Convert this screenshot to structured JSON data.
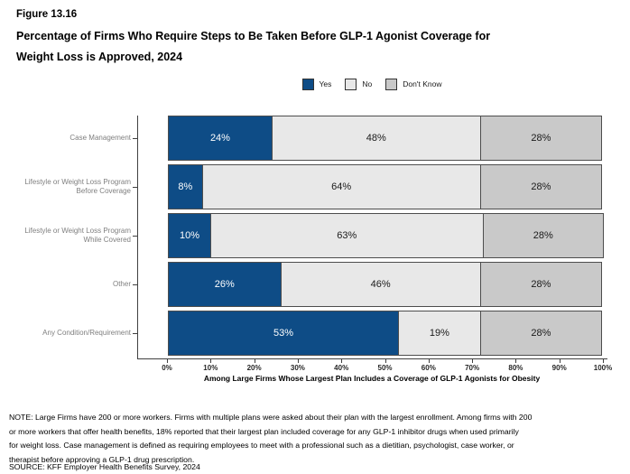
{
  "header": {
    "figure_number": "Figure 13.16",
    "title": "Percentage of Firms Who Require Steps to Be Taken Before GLP-1 Agonist Coverage for\nWeight Loss is Approved, 2024"
  },
  "legend": {
    "items": [
      {
        "label": "Yes",
        "color": "#0E4C86"
      },
      {
        "label": "No",
        "color": "#E8E8E8"
      },
      {
        "label": "Don't Know",
        "color": "#C9C9C9"
      }
    ]
  },
  "chart_data": {
    "type": "bar",
    "orientation": "horizontal",
    "stacked": true,
    "title": "Percentage of Firms Who Require Steps to Be Taken Before GLP-1 Agonist Coverage for Weight Loss is Approved, 2024",
    "categories": [
      "Case Management",
      "Lifestyle or Weight Loss Program Before Coverage",
      "Lifestyle or Weight Loss Program While Covered",
      "Other",
      "Any Condition/Requirement"
    ],
    "category_label_lines": [
      "Case Management",
      "Lifestyle or Weight Loss Program\nBefore Coverage",
      "Lifestyle or Weight Loss Program\nWhile Covered",
      "Other",
      "Any Condition/Requirement"
    ],
    "series": [
      {
        "name": "Yes",
        "color": "#0E4C86",
        "text_color": "#FFFFFF",
        "values": [
          24,
          8,
          10,
          26,
          53
        ]
      },
      {
        "name": "No",
        "color": "#E8E8E8",
        "text_color": "#1A1A1A",
        "values": [
          48,
          64,
          63,
          46,
          19
        ]
      },
      {
        "name": "Don't Know",
        "color": "#C9C9C9",
        "text_color": "#1A1A1A",
        "values": [
          28,
          28,
          28,
          28,
          28
        ]
      }
    ],
    "value_suffix": "%",
    "xlabel": "Among Large Firms Whose Largest Plan Includes a Coverage of GLP-1 Agonists for Obesity",
    "x_ticks": [
      "0%",
      "10%",
      "20%",
      "30%",
      "40%",
      "50%",
      "60%",
      "70%",
      "80%",
      "90%",
      "100%"
    ],
    "xlim": [
      0,
      100
    ],
    "grid": false,
    "legend_position": "top"
  },
  "footer": {
    "note": "NOTE: Large Firms have 200 or more workers.  Firms with multiple plans were asked about their plan with the largest enrollment.  Among firms with 200\nor more workers that offer health benefits, 18% reported that their largest plan included coverage for any GLP-1 inhibitor drugs when used primarily\nfor weight loss. Case management is defined as requiring employees to meet with a professional such as a dietitian, psychologist, case worker, or\ntherapist before approving a GLP-1 drug prescription.",
    "source": "SOURCE: KFF Employer Health Benefits Survey, 2024"
  }
}
